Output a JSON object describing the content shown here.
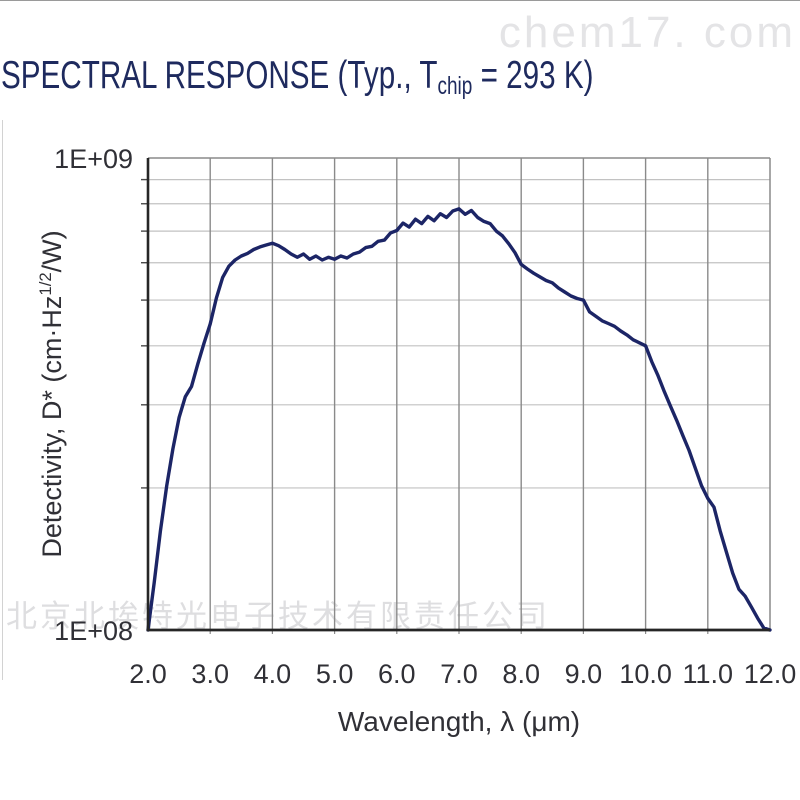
{
  "page": {
    "top_watermark": "chem17. com",
    "bottom_watermark": "北京北埃特光电子技术有限责任公司"
  },
  "title": {
    "pre": "SPECTRAL RESPONSE (Typ., T",
    "sub": "chip",
    "post": " = 293 K)"
  },
  "chart_data": {
    "type": "line",
    "title": "SPECTRAL RESPONSE (Typ., Tchip = 293 K)",
    "xlabel": "Wavelength, λ (μm)",
    "ylabel": "Detectivity, D* (cm·Hz^1/2/W)",
    "ylabel_parts": {
      "pre": "Detectivity, D* (cm·Hz",
      "sup": "1/2",
      "post": "/W)"
    },
    "xlim": [
      2.0,
      12.0
    ],
    "ylim": [
      100000000.0,
      1000000000.0
    ],
    "yscale": "log",
    "grid": true,
    "legend": false,
    "x_tick_labels": [
      "2.0",
      "3.0",
      "4.0",
      "5.0",
      "6.0",
      "7.0",
      "8.0",
      "9.0",
      "10.0",
      "11.0",
      "12.0"
    ],
    "x_tick_values": [
      2,
      3,
      4,
      5,
      6,
      7,
      8,
      9,
      10,
      11,
      12
    ],
    "y_tick_labels": [
      "1E+09",
      "1E+08"
    ],
    "y_tick_values": [
      1000000000.0,
      100000000.0
    ],
    "y_minor_grid_values_1e8": [
      2,
      3,
      4,
      5,
      6,
      7,
      8,
      9
    ],
    "series": [
      {
        "name": "Detectivity D*",
        "x_start": 2.0,
        "x_step": 0.1,
        "unit": "1e8 cm·Hz^1/2/W",
        "values_1e8": [
          1.0,
          1.26,
          1.62,
          2.02,
          2.42,
          2.82,
          3.12,
          3.28,
          3.66,
          4.05,
          4.45,
          5.05,
          5.58,
          5.9,
          6.08,
          6.2,
          6.28,
          6.4,
          6.48,
          6.54,
          6.6,
          6.52,
          6.4,
          6.26,
          6.16,
          6.26,
          6.1,
          6.2,
          6.08,
          6.16,
          6.1,
          6.2,
          6.14,
          6.26,
          6.32,
          6.46,
          6.5,
          6.66,
          6.7,
          6.94,
          7.02,
          7.28,
          7.14,
          7.42,
          7.26,
          7.52,
          7.36,
          7.62,
          7.48,
          7.72,
          7.8,
          7.6,
          7.74,
          7.48,
          7.34,
          7.26,
          7.0,
          6.84,
          6.58,
          6.3,
          5.95,
          5.82,
          5.7,
          5.6,
          5.5,
          5.44,
          5.3,
          5.2,
          5.1,
          5.04,
          5.0,
          4.72,
          4.62,
          4.52,
          4.46,
          4.4,
          4.3,
          4.22,
          4.12,
          4.06,
          4.0,
          3.7,
          3.46,
          3.2,
          2.98,
          2.78,
          2.58,
          2.4,
          2.2,
          2.02,
          1.9,
          1.82,
          1.62,
          1.46,
          1.32,
          1.22,
          1.18,
          1.12,
          1.06,
          1.01,
          1.0
        ]
      }
    ],
    "colors": {
      "line": "#1c2566",
      "grid_major": "#8a8a8a",
      "grid_minor": "#c2c2c2",
      "axis": "#262626",
      "tick": "#4a4a4a",
      "text": "#303036",
      "title": "#1e2a5e"
    }
  }
}
